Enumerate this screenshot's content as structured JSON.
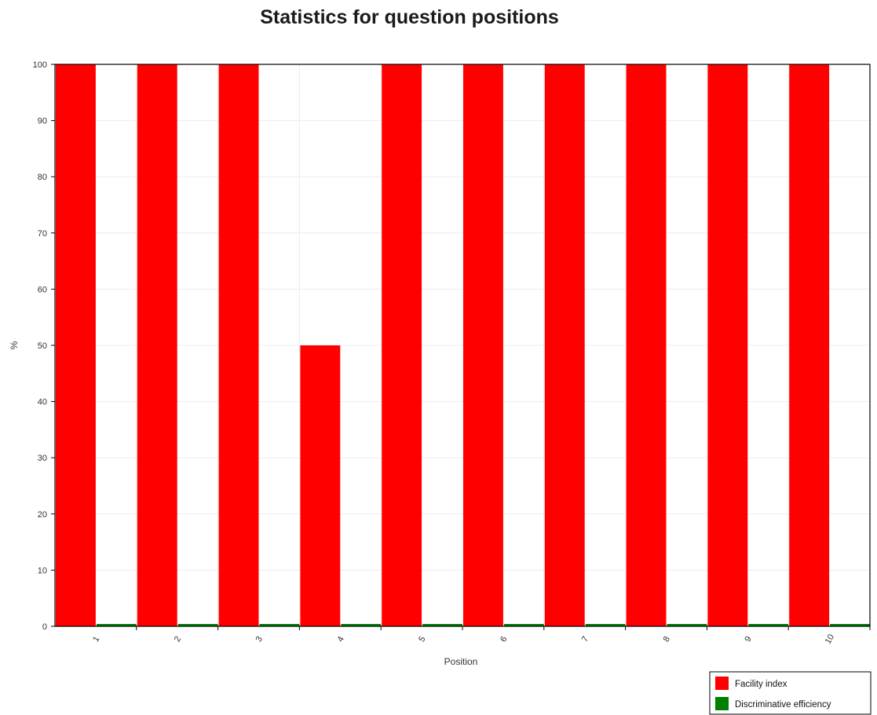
{
  "chart_data": {
    "type": "bar",
    "title": "Statistics for question positions",
    "xlabel": "Position",
    "ylabel": "%",
    "categories": [
      "1",
      "2",
      "3",
      "4",
      "5",
      "6",
      "7",
      "8",
      "9",
      "10"
    ],
    "series": [
      {
        "name": "Facility index",
        "color": "#ff0000",
        "values": [
          100,
          100,
          100,
          50,
          100,
          100,
          100,
          100,
          100,
          100
        ]
      },
      {
        "name": "Discriminative efficiency",
        "color": "#008000",
        "values": [
          0,
          0,
          0,
          0,
          0,
          0,
          0,
          0,
          0,
          0
        ]
      }
    ],
    "ylim": [
      0,
      100
    ],
    "yticks": [
      0,
      10,
      20,
      30,
      40,
      50,
      60,
      70,
      80,
      90,
      100
    ],
    "grid": true,
    "legend_position": "bottom-right"
  }
}
